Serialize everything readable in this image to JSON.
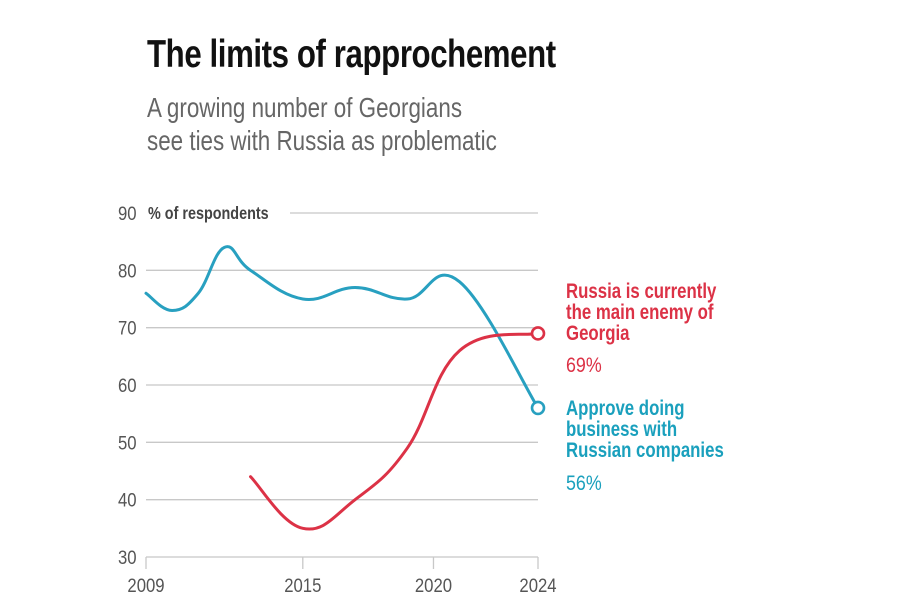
{
  "header": {
    "title": "The limits of rapprochement",
    "subtitle_lines": [
      "A growing number of Georgians",
      "see ties with Russia as problematic"
    ]
  },
  "chart_data": {
    "type": "line",
    "title": "The limits of rapprochement",
    "subtitle": "A growing number of Georgians see ties with Russia as problematic",
    "xlabel": "",
    "ylabel": "% of respondents",
    "xlim": [
      2009,
      2024
    ],
    "ylim": [
      30,
      90
    ],
    "x_ticks": [
      2009,
      2015,
      2020,
      2024
    ],
    "y_ticks": [
      30,
      40,
      50,
      60,
      70,
      80,
      90
    ],
    "grid": true,
    "legend": "direct labels right",
    "series": [
      {
        "name": "Approve doing business with Russian companies",
        "label_lines": [
          "Approve doing",
          "business with",
          "Russian companies"
        ],
        "end_label": "56%",
        "color": "#28a0c0",
        "x": [
          2009,
          2010,
          2011,
          2012,
          2013,
          2015,
          2017,
          2019,
          2021,
          2024
        ],
        "y": [
          76,
          73,
          76,
          84,
          80,
          75,
          77,
          75,
          78,
          56
        ]
      },
      {
        "name": "Russia is currently the main enemy of Georgia",
        "label_lines": [
          "Russia is currently",
          "the main enemy of",
          "Georgia"
        ],
        "end_label": "69%",
        "color": "#dc3246",
        "x": [
          2013,
          2015,
          2017,
          2019,
          2021,
          2024
        ],
        "y": [
          44,
          35,
          40,
          49,
          66,
          69
        ]
      }
    ]
  }
}
